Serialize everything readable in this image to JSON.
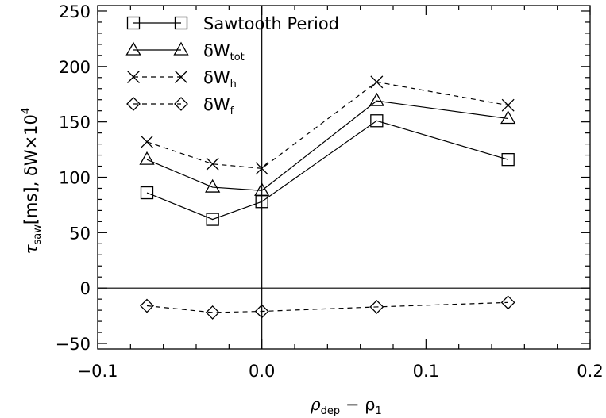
{
  "chart_data": {
    "type": "line",
    "xlabel": {
      "main": "ρ",
      "sub1": "dep",
      "mid": " − ρ",
      "sub2": "1"
    },
    "ylabel": {
      "pre": "τ",
      "sub1": "saw",
      "mid": "[ms], δW×10",
      "sup": "4"
    },
    "xlim": [
      -0.1,
      0.2
    ],
    "ylim": [
      -55,
      255
    ],
    "xticks": [
      -0.1,
      0.0,
      0.1,
      0.2
    ],
    "xtick_labels": [
      "−0.1",
      "0.0",
      "0.1",
      "0.2"
    ],
    "yticks": [
      -50,
      0,
      50,
      100,
      150,
      200,
      250
    ],
    "ytick_labels": [
      "−50",
      "0",
      "50",
      "100",
      "150",
      "200",
      "250"
    ],
    "reference_lines": {
      "x": 0.0,
      "y": 0
    },
    "legend_position": "top-left",
    "x": [
      -0.07,
      -0.03,
      0.0,
      0.07,
      0.15
    ],
    "series": [
      {
        "name": "Sawtooth Period",
        "label_main": "Sawtooth Period",
        "label_sub": "",
        "marker": "square",
        "linestyle": "solid",
        "values": [
          86,
          62,
          78,
          151,
          116
        ]
      },
      {
        "name": "δWtot",
        "label_main": "δW",
        "label_sub": "tot",
        "marker": "triangle",
        "linestyle": "solid",
        "values": [
          116,
          91,
          88,
          169,
          153
        ]
      },
      {
        "name": "δWh",
        "label_main": "δW",
        "label_sub": "h",
        "marker": "x",
        "linestyle": "dashed",
        "values": [
          132,
          112,
          108,
          186,
          165
        ]
      },
      {
        "name": "δWf",
        "label_main": "δW",
        "label_sub": "f",
        "marker": "diamond",
        "linestyle": "dashed",
        "values": [
          -16,
          -22,
          -21,
          -17,
          -13
        ]
      }
    ]
  }
}
